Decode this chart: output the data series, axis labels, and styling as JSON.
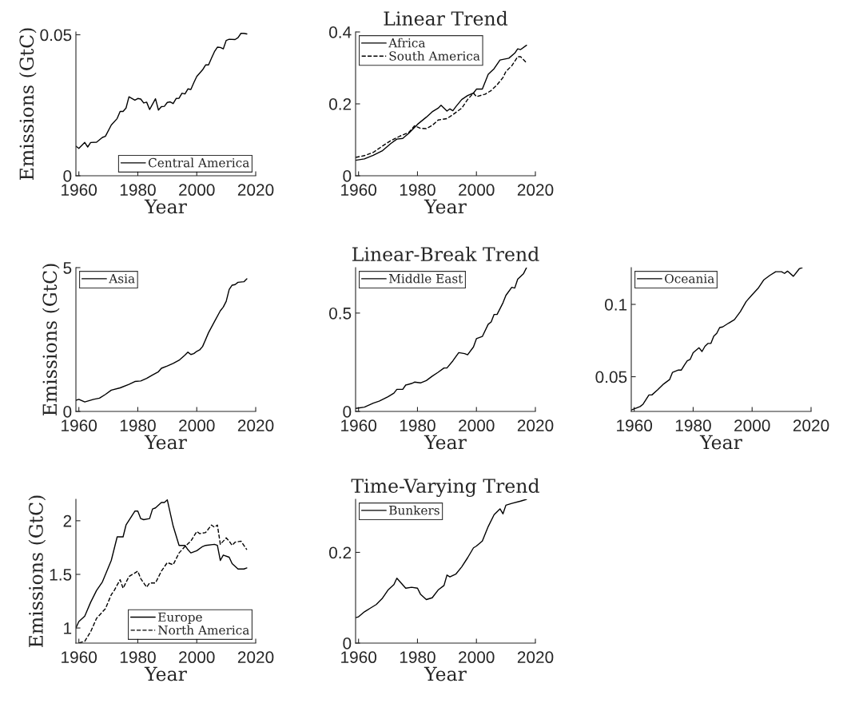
{
  "chart_data": [
    {
      "type": "line",
      "xlabel": "Year",
      "ylabel": "Emissions (GtC)",
      "xlim": [
        1959,
        2020
      ],
      "ylim": [
        0,
        0.051
      ],
      "xticks": [
        1960,
        1980,
        2000,
        2020
      ],
      "yticks": [
        0,
        0.05
      ],
      "legend": "bottom right",
      "series": [
        {
          "name": "Central America",
          "color": "#000000",
          "line_style": "solid",
          "x": [
            1959,
            1960,
            1962,
            1963,
            1964,
            1966,
            1968,
            1969,
            1971,
            1973,
            1974,
            1975,
            1976,
            1977,
            1979,
            1980,
            1981,
            1982,
            1983,
            1984,
            1986,
            1987,
            1988,
            1989,
            1990,
            1991,
            1992,
            1993,
            1994,
            1995,
            1996,
            1997,
            1998,
            1999,
            2000,
            2002,
            2003,
            2004,
            2005,
            2006,
            2007,
            2008,
            2009,
            2010,
            2011,
            2013,
            2014,
            2015,
            2016,
            2017
          ],
          "values": [
            0.0105,
            0.0097,
            0.0118,
            0.0102,
            0.0118,
            0.0119,
            0.0136,
            0.014,
            0.018,
            0.0203,
            0.0228,
            0.0228,
            0.024,
            0.028,
            0.0268,
            0.0274,
            0.0272,
            0.0258,
            0.0261,
            0.0235,
            0.0273,
            0.0233,
            0.0245,
            0.0246,
            0.026,
            0.0262,
            0.0256,
            0.0274,
            0.0275,
            0.0293,
            0.029,
            0.0308,
            0.0306,
            0.033,
            0.0352,
            0.0376,
            0.0393,
            0.0393,
            0.0417,
            0.044,
            0.0456,
            0.0455,
            0.045,
            0.048,
            0.0484,
            0.0483,
            0.049,
            0.0505,
            0.0505,
            0.0503
          ]
        }
      ]
    },
    {
      "type": "line",
      "title": "Linear Trend",
      "xlabel": "Year",
      "xlim": [
        1959,
        2020
      ],
      "ylim": [
        0,
        0.4
      ],
      "xticks": [
        1960,
        1980,
        2000,
        2020
      ],
      "yticks": [
        0,
        0.2,
        0.4
      ],
      "legend": "top left",
      "series": [
        {
          "name": "Africa",
          "color": "#000000",
          "line_style": "solid",
          "x": [
            1959,
            1962,
            1965,
            1968,
            1971,
            1973,
            1975,
            1977,
            1980,
            1983,
            1985,
            1987,
            1988,
            1990,
            1991,
            1992,
            1993,
            1995,
            1997,
            1999,
            2000,
            2002,
            2004,
            2006,
            2008,
            2011,
            2013,
            2014,
            2015,
            2017
          ],
          "values": [
            0.043,
            0.047,
            0.057,
            0.069,
            0.09,
            0.102,
            0.104,
            0.118,
            0.143,
            0.163,
            0.178,
            0.188,
            0.196,
            0.18,
            0.186,
            0.181,
            0.192,
            0.212,
            0.223,
            0.23,
            0.241,
            0.241,
            0.282,
            0.298,
            0.322,
            0.327,
            0.341,
            0.353,
            0.351,
            0.363
          ]
        },
        {
          "name": "South America",
          "color": "#000000",
          "line_style": "dashed",
          "x": [
            1959,
            1962,
            1965,
            1968,
            1971,
            1974,
            1977,
            1979,
            1981,
            1983,
            1985,
            1987,
            1990,
            1992,
            1995,
            1997,
            1999,
            2000,
            2003,
            2005,
            2007,
            2009,
            2010,
            2012,
            2014,
            2015,
            2017
          ],
          "values": [
            0.051,
            0.056,
            0.065,
            0.082,
            0.098,
            0.11,
            0.12,
            0.139,
            0.132,
            0.131,
            0.14,
            0.155,
            0.159,
            0.17,
            0.188,
            0.212,
            0.23,
            0.22,
            0.227,
            0.237,
            0.253,
            0.273,
            0.29,
            0.306,
            0.331,
            0.331,
            0.314
          ]
        }
      ]
    },
    {
      "type": "line",
      "xlabel": "Year",
      "ylabel": "Emissions (GtC)",
      "xlim": [
        1959,
        2020
      ],
      "ylim": [
        0,
        5
      ],
      "xticks": [
        1960,
        1980,
        2000,
        2020
      ],
      "yticks": [
        0,
        5
      ],
      "legend": "top left",
      "series": [
        {
          "name": "Asia",
          "color": "#000000",
          "line_style": "solid",
          "x": [
            1959,
            1960,
            1962,
            1965,
            1967,
            1969,
            1971,
            1974,
            1977,
            1979,
            1981,
            1983,
            1985,
            1987,
            1988,
            1990,
            1992,
            1994,
            1996,
            1997,
            1998,
            1999,
            2000,
            2001,
            2002,
            2004,
            2006,
            2008,
            2009,
            2010,
            2011,
            2012,
            2013,
            2014,
            2016,
            2017
          ],
          "values": [
            0.39,
            0.42,
            0.33,
            0.42,
            0.46,
            0.59,
            0.74,
            0.82,
            0.94,
            1.04,
            1.06,
            1.15,
            1.27,
            1.38,
            1.5,
            1.58,
            1.67,
            1.78,
            1.96,
            2.06,
            1.98,
            2.01,
            2.09,
            2.14,
            2.26,
            2.74,
            3.12,
            3.5,
            3.63,
            3.83,
            4.24,
            4.39,
            4.41,
            4.49,
            4.51,
            4.61
          ]
        }
      ]
    },
    {
      "type": "line",
      "title": "Linear-Break Trend",
      "xlabel": "Year",
      "xlim": [
        1959,
        2020
      ],
      "ylim": [
        0,
        0.731
      ],
      "xticks": [
        1960,
        1980,
        2000,
        2020
      ],
      "yticks": [
        0,
        0.5
      ],
      "legend": "top left",
      "series": [
        {
          "name": "Middle East",
          "color": "#000000",
          "line_style": "solid",
          "x": [
            1959,
            1962,
            1965,
            1967,
            1970,
            1972,
            1973,
            1975,
            1976,
            1978,
            1979,
            1981,
            1983,
            1985,
            1987,
            1989,
            1990,
            1992,
            1994,
            1996,
            1997,
            1999,
            2000,
            2002,
            2004,
            2005,
            2006,
            2007,
            2009,
            2010,
            2012,
            2013,
            2014,
            2016,
            2017
          ],
          "values": [
            0.015,
            0.022,
            0.042,
            0.052,
            0.075,
            0.093,
            0.112,
            0.112,
            0.134,
            0.142,
            0.149,
            0.145,
            0.157,
            0.179,
            0.199,
            0.221,
            0.221,
            0.257,
            0.299,
            0.294,
            0.288,
            0.328,
            0.37,
            0.381,
            0.443,
            0.455,
            0.493,
            0.493,
            0.552,
            0.59,
            0.631,
            0.627,
            0.672,
            0.701,
            0.731
          ]
        }
      ]
    },
    {
      "type": "line",
      "xlabel": "Year",
      "xlim": [
        1959,
        2020
      ],
      "ylim": [
        0.026,
        0.1254
      ],
      "xticks": [
        1960,
        1980,
        2000,
        2020
      ],
      "yticks": [
        0.05,
        0.1
      ],
      "legend": "top left",
      "series": [
        {
          "name": "Oceania",
          "color": "#000000",
          "line_style": "solid",
          "x": [
            1959,
            1961,
            1962,
            1963,
            1965,
            1966,
            1968,
            1970,
            1972,
            1973,
            1975,
            1976,
            1977,
            1978,
            1979,
            1980,
            1982,
            1983,
            1984,
            1985,
            1986,
            1987,
            1988,
            1989,
            1990,
            1992,
            1994,
            1996,
            1998,
            2000,
            2002,
            2003,
            2004,
            2006,
            2008,
            2010,
            2011,
            2012,
            2014,
            2016,
            2017
          ],
          "values": [
            0.027,
            0.0286,
            0.0294,
            0.031,
            0.0374,
            0.0374,
            0.041,
            0.045,
            0.048,
            0.053,
            0.0546,
            0.0546,
            0.058,
            0.061,
            0.062,
            0.0666,
            0.07,
            0.0674,
            0.071,
            0.073,
            0.073,
            0.078,
            0.08,
            0.084,
            0.0844,
            0.087,
            0.0894,
            0.095,
            0.102,
            0.1066,
            0.111,
            0.114,
            0.117,
            0.12,
            0.1226,
            0.1226,
            0.1214,
            0.123,
            0.1194,
            0.1246,
            0.1254
          ]
        }
      ]
    },
    {
      "type": "line",
      "xlabel": "Year",
      "ylabel": "Emissions (GtC)",
      "xlim": [
        1959,
        2020
      ],
      "ylim": [
        0.859,
        2.2
      ],
      "xticks": [
        1960,
        1980,
        2000,
        2020
      ],
      "yticks": [
        1,
        1.5,
        2
      ],
      "legend": "bottom right",
      "series": [
        {
          "name": "Europe",
          "color": "#000000",
          "line_style": "solid",
          "x": [
            1959,
            1960,
            1962,
            1964,
            1966,
            1968,
            1971,
            1973,
            1975,
            1976,
            1979,
            1980,
            1981,
            1982,
            1984,
            1985,
            1986,
            1988,
            1989,
            1990,
            1992,
            1994,
            1996,
            1997,
            1998,
            2000,
            2002,
            2003,
            2006,
            2007,
            2008,
            2009,
            2011,
            2012,
            2014,
            2016,
            2017
          ],
          "values": [
            1.0,
            1.06,
            1.11,
            1.24,
            1.35,
            1.43,
            1.63,
            1.85,
            1.85,
            1.96,
            2.09,
            2.09,
            2.02,
            2.01,
            2.02,
            2.11,
            2.12,
            2.17,
            2.17,
            2.195,
            1.95,
            1.77,
            1.77,
            1.73,
            1.7,
            1.72,
            1.76,
            1.77,
            1.78,
            1.77,
            1.63,
            1.68,
            1.66,
            1.6,
            1.55,
            1.55,
            1.56
          ]
        },
        {
          "name": "North America",
          "color": "#000000",
          "line_style": "dashed",
          "x": [
            1960,
            1962,
            1964,
            1966,
            1969,
            1971,
            1972,
            1974,
            1975,
            1977,
            1980,
            1981,
            1983,
            1984,
            1986,
            1988,
            1990,
            1992,
            1994,
            1996,
            1998,
            2000,
            2001,
            2003,
            2005,
            2006,
            2007,
            2008,
            2010,
            2011,
            2012,
            2013,
            2015,
            2017
          ],
          "values": [
            0.86,
            0.876,
            0.965,
            1.09,
            1.18,
            1.31,
            1.35,
            1.45,
            1.37,
            1.48,
            1.53,
            1.46,
            1.38,
            1.42,
            1.42,
            1.53,
            1.61,
            1.59,
            1.7,
            1.76,
            1.81,
            1.9,
            1.88,
            1.89,
            1.96,
            1.94,
            1.96,
            1.78,
            1.84,
            1.81,
            1.77,
            1.8,
            1.81,
            1.73
          ]
        }
      ]
    },
    {
      "type": "line",
      "title": "Time-Varying Trend",
      "xlabel": "Year",
      "xlim": [
        1959,
        2020
      ],
      "ylim": [
        0,
        0.317
      ],
      "xticks": [
        1960,
        1980,
        2000,
        2020
      ],
      "yticks": [
        0,
        0.2
      ],
      "legend": "top left",
      "series": [
        {
          "name": "Bunkers",
          "color": "#000000",
          "line_style": "solid",
          "x": [
            1959,
            1960,
            1962,
            1964,
            1966,
            1968,
            1970,
            1972,
            1973,
            1976,
            1978,
            1980,
            1981,
            1983,
            1985,
            1987,
            1989,
            1990,
            1991,
            1993,
            1995,
            1997,
            1999,
            2000,
            2002,
            2004,
            2006,
            2008,
            2009,
            2010,
            2012,
            2015,
            2017
          ],
          "values": [
            0.056,
            0.058,
            0.069,
            0.077,
            0.085,
            0.098,
            0.117,
            0.129,
            0.143,
            0.121,
            0.123,
            0.121,
            0.108,
            0.096,
            0.1,
            0.117,
            0.127,
            0.15,
            0.146,
            0.152,
            0.168,
            0.188,
            0.21,
            0.214,
            0.225,
            0.257,
            0.283,
            0.296,
            0.285,
            0.304,
            0.308,
            0.313,
            0.317
          ]
        }
      ]
    }
  ]
}
